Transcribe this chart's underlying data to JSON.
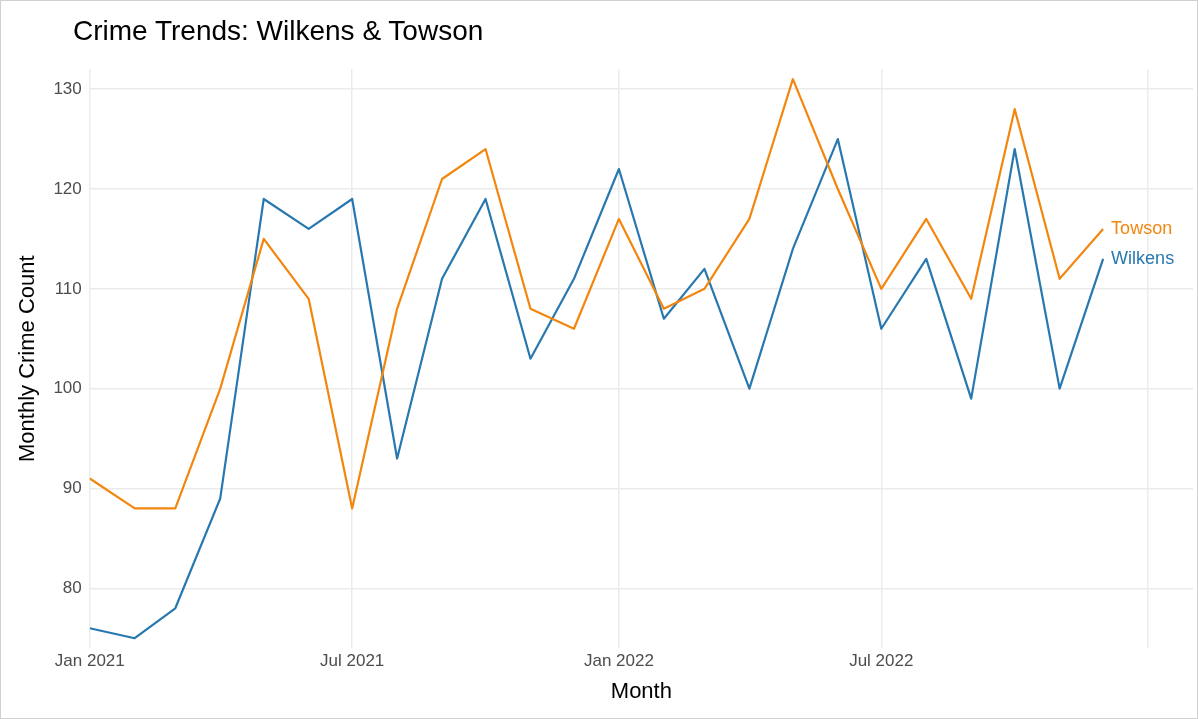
{
  "chart_data": {
    "type": "line",
    "title": "Crime Trends: Wilkens & Towson",
    "xlabel": "Month",
    "ylabel": "Monthly Crime Count",
    "x": [
      "2021-01",
      "2021-02",
      "2021-03",
      "2021-04",
      "2021-05",
      "2021-06",
      "2021-07",
      "2021-08",
      "2021-09",
      "2021-10",
      "2021-11",
      "2021-12",
      "2022-01",
      "2022-02",
      "2022-03",
      "2022-04",
      "2022-05",
      "2022-06",
      "2022-07",
      "2022-08",
      "2022-09",
      "2022-10",
      "2022-11",
      "2022-12"
    ],
    "series": [
      {
        "name": "Towson",
        "color": "#f3860e",
        "values": [
          91,
          88,
          88,
          100,
          115,
          109,
          88,
          108,
          121,
          124,
          108,
          106,
          117,
          108,
          110,
          117,
          131,
          120,
          110,
          117,
          109,
          128,
          111,
          116
        ]
      },
      {
        "name": "Wilkens",
        "color": "#2878b0",
        "values": [
          76,
          75,
          78,
          89,
          119,
          116,
          119,
          93,
          111,
          119,
          103,
          111,
          122,
          107,
          112,
          100,
          114,
          125,
          106,
          113,
          99,
          124,
          100,
          113
        ]
      }
    ],
    "xlim": [
      "2021-01",
      "2023-02"
    ],
    "xticks": [
      {
        "value": "2021-01",
        "label": "Jan 2021"
      },
      {
        "value": "2021-07",
        "label": "Jul 2021"
      },
      {
        "value": "2022-01",
        "label": "Jan 2022"
      },
      {
        "value": "2022-07",
        "label": "Jul 2022"
      },
      {
        "value": "2023-01",
        "label": null
      }
    ],
    "ylim": [
      74,
      132
    ],
    "yticks": [
      80,
      90,
      100,
      110,
      120,
      130
    ],
    "grid": true,
    "legend": false,
    "marker": "none",
    "line_style": "solid"
  }
}
